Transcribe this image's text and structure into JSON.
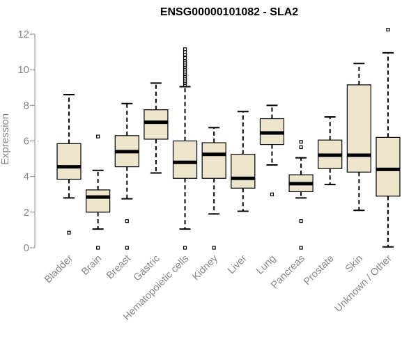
{
  "chart_data": {
    "type": "boxplot",
    "title": "ENSG00000101082 - SLA2",
    "xlabel": "",
    "ylabel": "Expression",
    "ylim": [
      0,
      12
    ],
    "yticks": [
      0,
      2,
      4,
      6,
      8,
      10,
      12
    ],
    "grid": false,
    "colors": {
      "box_fill": "#EDE6CC",
      "stroke": "#000000",
      "axis": "#888888"
    },
    "categories": [
      "Bladder",
      "Brain",
      "Breast",
      "Gastric",
      "Hematopoietic cells",
      "Kidney",
      "Liver",
      "Lung",
      "Pancreas",
      "Prostate",
      "Skin",
      "Unknown / Other"
    ],
    "boxes": [
      {
        "name": "Bladder",
        "whisker_low": 2.8,
        "q1": 3.85,
        "median": 4.55,
        "q3": 5.85,
        "whisker_high": 8.6,
        "outliers": [
          0.85
        ]
      },
      {
        "name": "Brain",
        "whisker_low": 1.05,
        "q1": 2.0,
        "median": 2.85,
        "q3": 3.25,
        "whisker_high": 4.35,
        "outliers": [
          6.25,
          0.0
        ]
      },
      {
        "name": "Breast",
        "whisker_low": 2.75,
        "q1": 4.55,
        "median": 5.4,
        "q3": 6.3,
        "whisker_high": 8.1,
        "outliers": [
          1.5,
          0.0
        ]
      },
      {
        "name": "Gastric",
        "whisker_low": 4.2,
        "q1": 6.1,
        "median": 7.05,
        "q3": 7.75,
        "whisker_high": 9.25,
        "outliers": []
      },
      {
        "name": "Hematopoietic cells",
        "whisker_low": 1.05,
        "q1": 3.9,
        "median": 4.8,
        "q3": 6.0,
        "whisker_high": 9.05,
        "outliers": [
          0.0,
          9.15,
          9.25,
          9.35,
          9.45,
          9.55,
          9.65,
          9.75,
          9.85,
          9.95,
          10.05,
          10.15,
          10.25,
          10.35,
          10.45,
          10.55,
          10.65,
          10.85,
          11.0,
          11.15
        ]
      },
      {
        "name": "Kidney",
        "whisker_low": 1.9,
        "q1": 3.9,
        "median": 5.25,
        "q3": 5.9,
        "whisker_high": 6.75,
        "outliers": [
          0.0
        ]
      },
      {
        "name": "Liver",
        "whisker_low": 2.05,
        "q1": 3.35,
        "median": 3.9,
        "q3": 5.25,
        "whisker_high": 7.65,
        "outliers": []
      },
      {
        "name": "Lung",
        "whisker_low": 4.65,
        "q1": 5.8,
        "median": 6.45,
        "q3": 7.25,
        "whisker_high": 8.0,
        "outliers": [
          3.0
        ]
      },
      {
        "name": "Pancreas",
        "whisker_low": 2.8,
        "q1": 3.15,
        "median": 3.6,
        "q3": 4.1,
        "whisker_high": 5.05,
        "outliers": [
          5.65,
          5.95,
          1.5,
          0.0
        ]
      },
      {
        "name": "Prostate",
        "whisker_low": 3.55,
        "q1": 4.45,
        "median": 5.2,
        "q3": 6.05,
        "whisker_high": 7.35,
        "outliers": []
      },
      {
        "name": "Skin",
        "whisker_low": 2.1,
        "q1": 4.25,
        "median": 5.2,
        "q3": 9.15,
        "whisker_high": 10.35,
        "outliers": []
      },
      {
        "name": "Unknown / Other",
        "whisker_low": 0.05,
        "q1": 2.9,
        "median": 4.4,
        "q3": 6.2,
        "whisker_high": 10.95,
        "outliers": [
          12.25
        ]
      }
    ]
  }
}
